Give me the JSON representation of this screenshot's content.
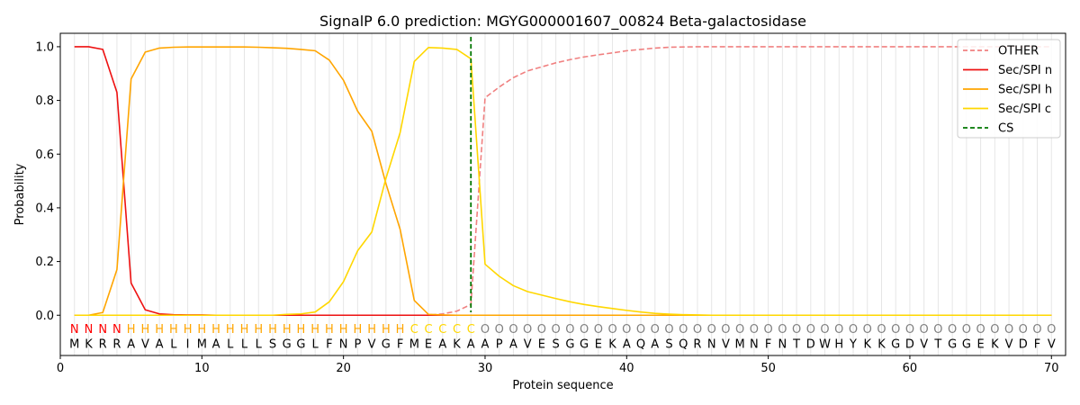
{
  "chart_data": {
    "type": "line",
    "title": "SignalP 6.0 prediction: MGYG000001607_00824 Beta-galactosidase",
    "xlabel": "Protein sequence",
    "ylabel": "Probability",
    "xlim": [
      0,
      71
    ],
    "ylim": [
      -0.15,
      1.05
    ],
    "x_ticks": [
      0,
      10,
      20,
      30,
      40,
      50,
      60,
      70
    ],
    "y_ticks": [
      0.0,
      0.2,
      0.4,
      0.6,
      0.8,
      1.0
    ],
    "x_tick_labels": [
      "0",
      "10",
      "20",
      "30",
      "40",
      "50",
      "60",
      "70"
    ],
    "y_tick_labels": [
      "0.0",
      "0.2",
      "0.4",
      "0.6",
      "0.8",
      "1.0"
    ],
    "grid": "vertical lines at each residue",
    "legend_position": "top-right",
    "sequence": "MKRRAVALIMALLLSGGLFNPVGFMEAKAAPAVESGGEKAQASQRNVMNFNTDWHYKKGDVTGGEKVDFV",
    "labels": "NNNNHHHHHHHHHHHHHHHHHHHHCCCCCOOOOOOOOOOOOOOOOOOOOOOOOOOOOOOOOOOOOOOOOO",
    "label_colors": {
      "N": "#ff0000",
      "H": "#ffa500",
      "C": "#ffd700",
      "O": "#808080"
    },
    "cleavage_site": 29,
    "series": [
      {
        "name": "OTHER",
        "color": "#f08080",
        "dash": "dashed",
        "values": [
          0.0,
          0.0,
          0.0,
          0.0,
          0.0,
          0.0,
          0.0,
          0.0,
          0.0,
          0.0,
          0.0,
          0.0,
          0.0,
          0.0,
          0.0,
          0.0,
          0.0,
          0.0,
          0.0,
          0.0,
          0.0,
          0.0,
          0.0,
          0.0,
          0.0,
          0.0,
          0.005,
          0.015,
          0.04,
          0.81,
          0.85,
          0.885,
          0.91,
          0.925,
          0.94,
          0.952,
          0.962,
          0.97,
          0.977,
          0.985,
          0.99,
          0.995,
          0.998,
          0.999,
          1.0,
          1.0,
          1.0,
          1.0,
          1.0,
          1.0,
          1.0,
          1.0,
          1.0,
          1.0,
          1.0,
          1.0,
          1.0,
          1.0,
          1.0,
          1.0,
          1.0,
          1.0,
          1.0,
          1.0,
          1.0,
          1.0,
          1.0,
          1.0,
          1.0,
          1.0
        ]
      },
      {
        "name": "Sec/SPI n",
        "color": "#ee1111",
        "dash": "solid",
        "values": [
          1.0,
          1.0,
          0.99,
          0.83,
          0.12,
          0.02,
          0.005,
          0.002,
          0.001,
          0.001,
          0.0,
          0.0,
          0.0,
          0.0,
          0.0,
          0.0,
          0.0,
          0.0,
          0.0,
          0.0,
          0.0,
          0.0,
          0.0,
          0.0,
          0.0,
          0.0,
          0.0,
          0.0,
          0.0,
          0.0,
          0.0,
          0.0,
          0.0,
          0.0,
          0.0,
          0.0,
          0.0,
          0.0,
          0.0,
          0.0,
          0.0,
          0.0,
          0.0,
          0.0,
          0.0,
          0.0,
          0.0,
          0.0,
          0.0,
          0.0,
          0.0,
          0.0,
          0.0,
          0.0,
          0.0,
          0.0,
          0.0,
          0.0,
          0.0,
          0.0,
          0.0,
          0.0,
          0.0,
          0.0,
          0.0,
          0.0,
          0.0,
          0.0,
          0.0,
          0.0
        ]
      },
      {
        "name": "Sec/SPI h",
        "color": "#ffa500",
        "dash": "solid",
        "values": [
          0.0,
          0.0,
          0.01,
          0.17,
          0.88,
          0.98,
          0.995,
          0.998,
          0.999,
          0.999,
          0.999,
          0.999,
          0.999,
          0.998,
          0.996,
          0.994,
          0.99,
          0.985,
          0.95,
          0.875,
          0.76,
          0.685,
          0.49,
          0.32,
          0.055,
          0.003,
          0.001,
          0.0,
          0.0,
          0.0,
          0.0,
          0.0,
          0.0,
          0.0,
          0.0,
          0.0,
          0.0,
          0.0,
          0.0,
          0.0,
          0.0,
          0.0,
          0.0,
          0.0,
          0.0,
          0.0,
          0.0,
          0.0,
          0.0,
          0.0,
          0.0,
          0.0,
          0.0,
          0.0,
          0.0,
          0.0,
          0.0,
          0.0,
          0.0,
          0.0,
          0.0,
          0.0,
          0.0,
          0.0,
          0.0,
          0.0,
          0.0,
          0.0,
          0.0,
          0.0
        ]
      },
      {
        "name": "Sec/SPI c",
        "color": "#ffd700",
        "dash": "solid",
        "values": [
          0.0,
          0.0,
          0.0,
          0.0,
          0.0,
          0.0,
          0.0,
          0.0,
          0.0,
          0.0,
          0.0,
          0.0,
          0.0,
          0.0,
          0.0,
          0.003,
          0.005,
          0.012,
          0.05,
          0.125,
          0.24,
          0.31,
          0.51,
          0.68,
          0.945,
          0.997,
          0.995,
          0.99,
          0.955,
          0.19,
          0.145,
          0.11,
          0.088,
          0.075,
          0.062,
          0.05,
          0.04,
          0.032,
          0.025,
          0.018,
          0.012,
          0.007,
          0.004,
          0.002,
          0.001,
          0.0,
          0.0,
          0.0,
          0.0,
          0.0,
          0.0,
          0.0,
          0.0,
          0.0,
          0.0,
          0.0,
          0.0,
          0.0,
          0.0,
          0.0,
          0.0,
          0.0,
          0.0,
          0.0,
          0.0,
          0.0,
          0.0,
          0.0,
          0.0,
          0.0
        ]
      }
    ],
    "legend": [
      "OTHER",
      "Sec/SPI n",
      "Sec/SPI h",
      "Sec/SPI c",
      "CS"
    ],
    "cs_color": "#007700"
  }
}
